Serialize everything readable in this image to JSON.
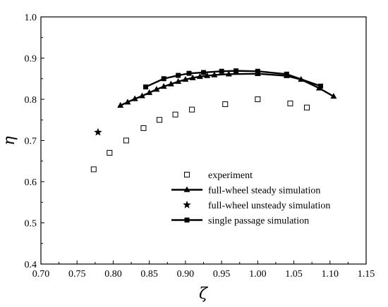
{
  "chart_data": {
    "type": "scatter",
    "xlabel": "ζ",
    "ylabel": "η",
    "xlim": [
      0.7,
      1.15
    ],
    "ylim": [
      0.4,
      1.0
    ],
    "x_ticks": [
      "0.70",
      "0.75",
      "0.80",
      "0.85",
      "0.90",
      "0.95",
      "1.00",
      "1.05",
      "1.10",
      "1.15"
    ],
    "y_ticks": [
      "0.4",
      "0.5",
      "0.6",
      "0.7",
      "0.8",
      "0.9",
      "1.0"
    ],
    "grid": false,
    "legend_position": "bottom-center",
    "series": [
      {
        "name": "experiment",
        "style": "hollow-square-markers",
        "x": [
          0.773,
          0.795,
          0.818,
          0.842,
          0.864,
          0.886,
          0.909,
          0.955,
          1.0,
          1.045,
          1.068
        ],
        "y": [
          0.63,
          0.67,
          0.7,
          0.73,
          0.75,
          0.763,
          0.775,
          0.788,
          0.8,
          0.79,
          0.78
        ]
      },
      {
        "name": "full-wheel steady simulation",
        "style": "line-with-triangles",
        "x": [
          0.81,
          0.82,
          0.83,
          0.84,
          0.85,
          0.86,
          0.87,
          0.88,
          0.89,
          0.9,
          0.91,
          0.92,
          0.93,
          0.94,
          0.96,
          1.0,
          1.04,
          1.06,
          1.085,
          1.105
        ],
        "y": [
          0.785,
          0.793,
          0.801,
          0.808,
          0.816,
          0.824,
          0.831,
          0.837,
          0.843,
          0.848,
          0.852,
          0.855,
          0.857,
          0.859,
          0.861,
          0.862,
          0.857,
          0.848,
          0.827,
          0.807
        ]
      },
      {
        "name": "full-wheel unsteady simulation",
        "style": "star-marker",
        "x": [
          0.779
        ],
        "y": [
          0.72
        ]
      },
      {
        "name": "single passage simulation",
        "style": "line-with-squares",
        "x": [
          0.845,
          0.87,
          0.89,
          0.905,
          0.925,
          0.95,
          0.97,
          1.0,
          1.04,
          1.087
        ],
        "y": [
          0.83,
          0.85,
          0.858,
          0.863,
          0.865,
          0.868,
          0.869,
          0.868,
          0.861,
          0.832
        ]
      }
    ]
  }
}
